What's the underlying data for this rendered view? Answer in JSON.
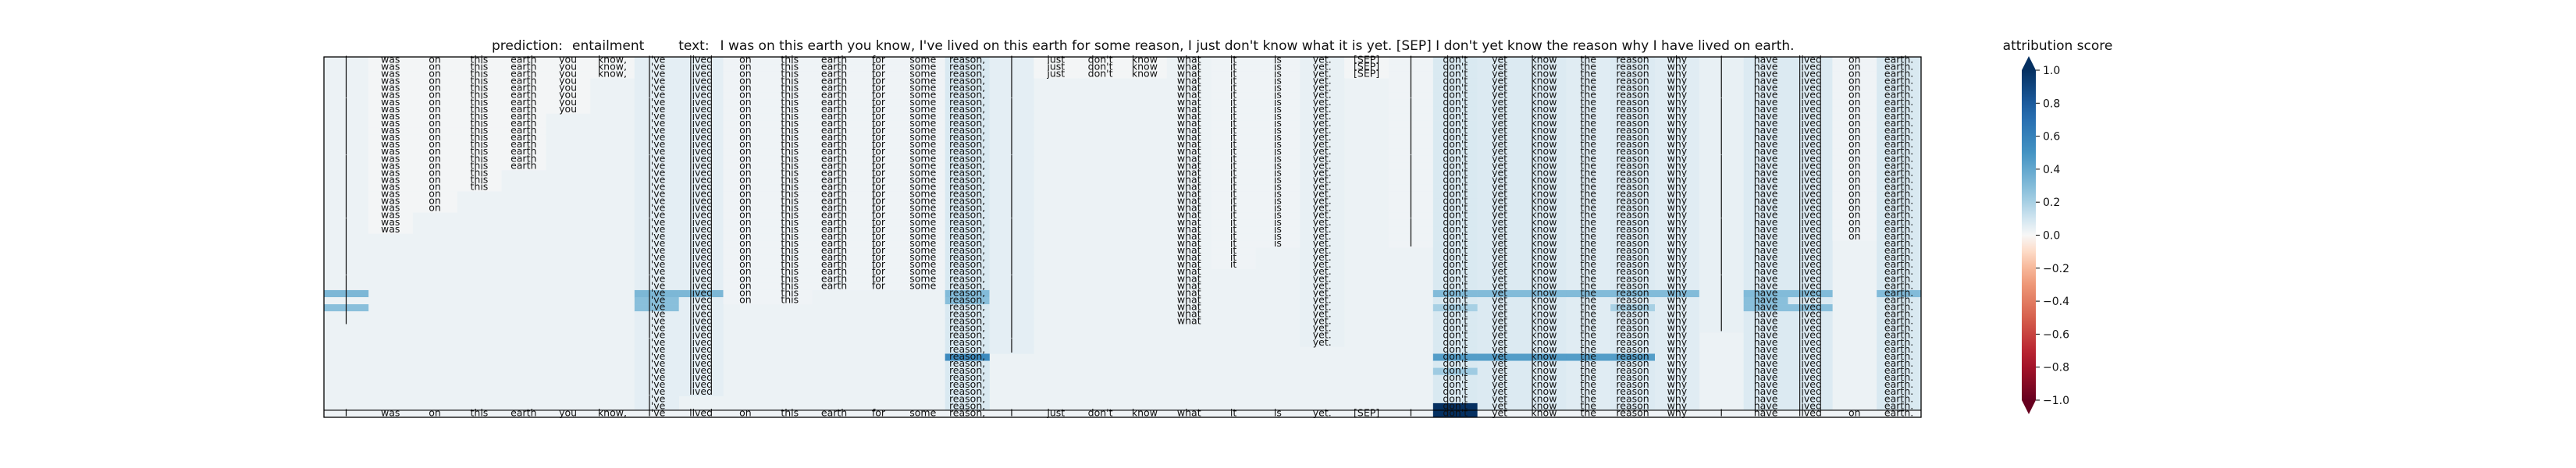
{
  "chart_data": {
    "type": "heatmap",
    "prediction_label": "prediction:",
    "prediction": "entailment",
    "text_label": "text:",
    "text": "I was on this earth you know, I've lived on this earth for some reason, I just don't know what it is yet. [SEP] I don't yet know the reason why I have lived on earth.",
    "tokens": [
      "I",
      "was",
      "on",
      "this",
      "earth",
      "you",
      "know,",
      "I've",
      "lived",
      "on",
      "this",
      "earth",
      "for",
      "some",
      "reason,",
      "I",
      "just",
      "don't",
      "know",
      "what",
      "it",
      "is",
      "yet.",
      "[SEP]",
      "I",
      "don't",
      "yet",
      "know",
      "the",
      "reason",
      "why",
      "I",
      "have",
      "lived",
      "on",
      "earth."
    ],
    "row_lengths": [
      36,
      36,
      36,
      31,
      31,
      31,
      31,
      31,
      30,
      30,
      30,
      30,
      30,
      30,
      30,
      30,
      29,
      29,
      29,
      28,
      28,
      28,
      27,
      27,
      27,
      26,
      25,
      23,
      23,
      23,
      22,
      22,
      22,
      19,
      19,
      17,
      17,
      17,
      15,
      14,
      14,
      13,
      12,
      12,
      12,
      12,
      12,
      12,
      11,
      11
    ],
    "colorbar": {
      "title": "attribution score",
      "ticks": [
        1.0,
        0.8,
        0.6,
        0.4,
        0.2,
        0.0,
        -0.2,
        -0.4,
        -0.6,
        -0.8,
        -1.0
      ],
      "tick_labels": [
        "1.0",
        "0.8",
        "0.6",
        "0.4",
        "0.2",
        "0.0",
        "−0.2",
        "−0.4",
        "−0.6",
        "−0.8",
        "−1.0"
      ],
      "range": [
        -1.0,
        1.0
      ],
      "colormap": "RdBu"
    },
    "base_scores": [
      0.03,
      0.01,
      0.01,
      0.01,
      0.01,
      0.01,
      0.01,
      0.05,
      0.05,
      0.02,
      0.02,
      0.02,
      0.02,
      0.02,
      0.08,
      0.05,
      0.01,
      0.01,
      0.01,
      0.03,
      0.02,
      0.02,
      0.04,
      0.01,
      0.02,
      0.08,
      0.07,
      0.07,
      0.06,
      0.07,
      0.06,
      0.04,
      0.07,
      0.07,
      0.02,
      0.08
    ],
    "highlights": [
      {
        "row": 33,
        "tokens": [
          0,
          7,
          8
        ],
        "score": 0.32
      },
      {
        "row": 33,
        "tokens": [
          14,
          25,
          26,
          27,
          28,
          29,
          30,
          32,
          33,
          35
        ],
        "score": 0.3
      },
      {
        "row": 34,
        "tokens": [
          7,
          14,
          32
        ],
        "score": 0.28
      },
      {
        "row": 35,
        "tokens": [
          0,
          7,
          32,
          33
        ],
        "score": 0.28
      },
      {
        "row": 35,
        "tokens": [
          25,
          29
        ],
        "score": 0.2
      },
      {
        "row": 42,
        "tokens": [
          14
        ],
        "score": 0.55
      },
      {
        "row": 42,
        "tokens": [
          25,
          26,
          27,
          28,
          29
        ],
        "score": 0.45
      },
      {
        "row": 44,
        "tokens": [
          25
        ],
        "score": 0.22
      },
      {
        "row": 49,
        "tokens": [
          25
        ],
        "score": 1.0
      }
    ]
  }
}
